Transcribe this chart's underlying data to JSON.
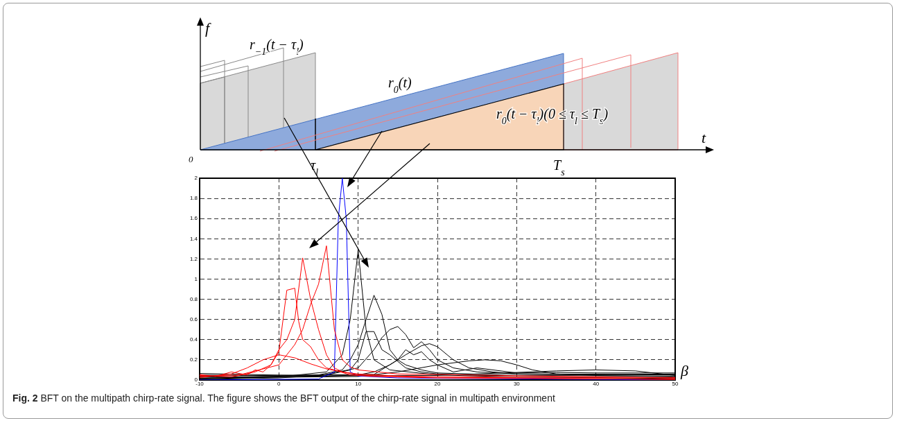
{
  "chart_data": {
    "type": "line",
    "xlabel": "β",
    "xlim": [
      -10,
      50
    ],
    "xticks": [
      -10,
      0,
      10,
      20,
      30,
      40,
      50
    ],
    "ylim": [
      0,
      2
    ],
    "yticks": [
      0,
      0.2,
      0.4,
      0.6,
      0.8,
      1,
      1.2,
      1.4,
      1.6,
      1.8,
      2
    ],
    "grid": true,
    "line_style": "solid",
    "marker": "none",
    "annotations": [
      "Fig. 2 BFT on the multipath chirp-rate signal. The figure shows the BFT output of the chirp-rate signal in multipath environment",
      "f",
      "t",
      "0",
      "τ$_{l}$",
      "T$_{s}$",
      "r$_{−1}$(t − τ$_{l}$)",
      "r$_{0}$(t)",
      "r$_{0}$(t − τ$_{l}$)(0 ≤ τ$_{l}$ ≤ T$_{s}$)"
    ],
    "series": [
      {
        "color": "#ff0000",
        "x": [
          -10,
          -6,
          -3,
          -1,
          0,
          1,
          2,
          3,
          4,
          5,
          6,
          7,
          8,
          10,
          15,
          20,
          50
        ],
        "values": [
          0.045,
          0.03,
          0.08,
          0.15,
          0.3,
          0.4,
          0.6,
          1.21,
          0.8,
          0.5,
          0.25,
          0.12,
          0.08,
          0.05,
          0.03,
          0.02,
          0.01
        ]
      },
      {
        "color": "#ff0000",
        "x": [
          -10,
          -5,
          0,
          2,
          3,
          4,
          5,
          6,
          7,
          8,
          9,
          10,
          15,
          50
        ],
        "values": [
          0.035,
          0.05,
          0.15,
          0.35,
          0.5,
          0.75,
          0.95,
          1.33,
          0.5,
          0.2,
          0.13,
          0.1,
          0.06,
          0.02
        ]
      },
      {
        "color": "#ff0000",
        "x": [
          -10,
          -8,
          -6,
          -4,
          -3,
          -2,
          -1,
          0,
          1,
          2,
          2.5,
          3,
          4,
          5,
          6,
          7,
          9,
          12,
          20,
          50
        ],
        "values": [
          0.055,
          0.035,
          0.08,
          0.05,
          0.1,
          0.08,
          0.15,
          0.28,
          0.89,
          0.91,
          0.58,
          0.4,
          0.33,
          0.2,
          0.12,
          0.1,
          0.05,
          0.035,
          0.03,
          0.025
        ]
      },
      {
        "color": "#ff0000",
        "x": [
          -10,
          -6,
          -4,
          -2,
          0,
          2,
          4,
          6,
          8,
          10,
          15,
          20,
          30,
          50
        ],
        "values": [
          0.025,
          0.06,
          0.12,
          0.2,
          0.25,
          0.22,
          0.16,
          0.11,
          0.08,
          0.06,
          0.04,
          0.03,
          0.02,
          0.005
        ]
      },
      {
        "color": "#0000ff",
        "x": [
          -10,
          5,
          7,
          7.5,
          8,
          8.5,
          9,
          10,
          15,
          50
        ],
        "values": [
          0,
          0.01,
          0.08,
          1.6,
          2,
          1.6,
          0.08,
          0.04,
          0.02,
          0
        ]
      },
      {
        "color": "#000000",
        "x": [
          -10,
          0,
          6,
          8,
          9,
          10,
          11,
          12,
          14,
          20,
          30,
          50
        ],
        "values": [
          0.01,
          0.03,
          0.08,
          0.25,
          0.6,
          1.29,
          0.5,
          0.2,
          0.1,
          0.05,
          0.03,
          0.015
        ]
      },
      {
        "color": "#000000",
        "x": [
          -10,
          5,
          8,
          9,
          10,
          11,
          12,
          13,
          14,
          15,
          16,
          18,
          20,
          30,
          50
        ],
        "values": [
          0.015,
          0.05,
          0.1,
          0.2,
          0.35,
          0.6,
          0.84,
          0.65,
          0.3,
          0.2,
          0.15,
          0.1,
          0.07,
          0.045,
          0.06
        ]
      },
      {
        "color": "#000000",
        "x": [
          -10,
          0,
          6,
          9,
          10,
          11,
          12,
          13,
          14,
          16,
          18,
          20,
          25,
          50
        ],
        "values": [
          0.005,
          0.02,
          0.05,
          0.1,
          0.2,
          0.48,
          0.48,
          0.3,
          0.25,
          0.12,
          0.08,
          0.06,
          0.045,
          0.04
        ]
      },
      {
        "color": "#000000",
        "x": [
          -10,
          5,
          10,
          12,
          13,
          14,
          15,
          16,
          17,
          18,
          19,
          20,
          22,
          25,
          30,
          50
        ],
        "values": [
          0.065,
          0.04,
          0.12,
          0.3,
          0.42,
          0.5,
          0.53,
          0.45,
          0.32,
          0.38,
          0.3,
          0.2,
          0.12,
          0.08,
          0.06,
          0.055
        ]
      },
      {
        "color": "#000000",
        "x": [
          -10,
          5,
          10,
          12,
          14,
          16,
          18,
          19,
          20,
          22,
          24,
          27,
          30,
          40,
          50
        ],
        "values": [
          0.03,
          0.035,
          0.05,
          0.08,
          0.15,
          0.25,
          0.34,
          0.36,
          0.33,
          0.2,
          0.12,
          0.08,
          0.06,
          0.055,
          0.05
        ]
      },
      {
        "color": "#000000",
        "x": [
          -10,
          10,
          15,
          20,
          24,
          26,
          28,
          30,
          32,
          35,
          40,
          50
        ],
        "values": [
          0.02,
          0.035,
          0.08,
          0.15,
          0.19,
          0.2,
          0.19,
          0.15,
          0.1,
          0.06,
          0.045,
          0.03
        ]
      },
      {
        "color": "#000000",
        "x": [
          -10,
          12,
          15,
          16,
          17,
          18,
          19,
          20,
          22,
          25,
          27,
          30,
          35,
          40,
          50
        ],
        "values": [
          0.04,
          0.055,
          0.2,
          0.3,
          0.25,
          0.28,
          0.2,
          0.15,
          0.08,
          0.12,
          0.1,
          0.07,
          0.075,
          0.07,
          0.07
        ]
      },
      {
        "color": "#000000",
        "x": [
          -10,
          0,
          20,
          30,
          35,
          40,
          45,
          50
        ],
        "values": [
          0.05,
          0.04,
          0.045,
          0.075,
          0.09,
          0.1,
          0.09,
          0.045
        ]
      }
    ]
  }
}
